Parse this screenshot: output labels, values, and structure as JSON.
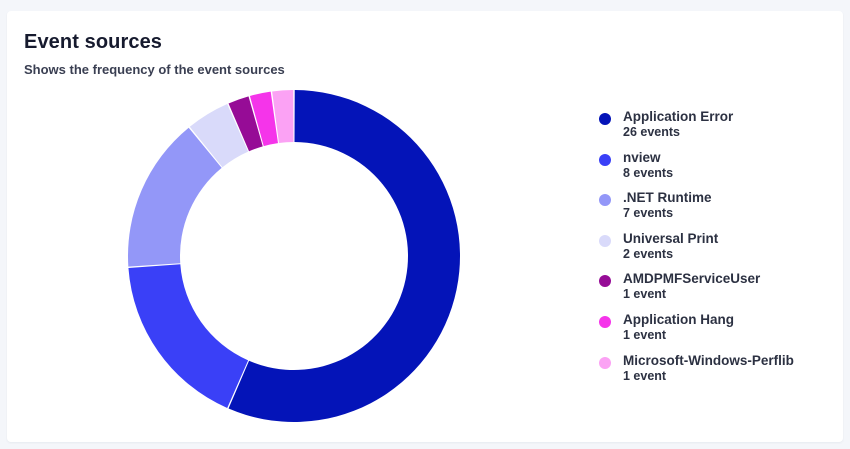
{
  "header": {
    "title": "Event sources",
    "subtitle": "Shows the frequency of the event sources"
  },
  "chart_data": {
    "type": "pie",
    "variant": "donut",
    "title": "Event sources",
    "subtitle": "Shows the frequency of the event sources",
    "legend_position": "right",
    "slices": [
      {
        "name": "Application Error",
        "value": 26,
        "count_label": "26 events",
        "color": "#0414b8"
      },
      {
        "name": "nview",
        "value": 8,
        "count_label": "8 events",
        "color": "#3a40f7"
      },
      {
        "name": ".NET Runtime",
        "value": 7,
        "count_label": "7 events",
        "color": "#9397f8"
      },
      {
        "name": "Universal Print",
        "value": 2,
        "count_label": "2 events",
        "color": "#d9dafa"
      },
      {
        "name": "AMDPMFServiceUser",
        "value": 1,
        "count_label": "1 event",
        "color": "#960c96"
      },
      {
        "name": "Application Hang",
        "value": 1,
        "count_label": "1 event",
        "color": "#f534ea"
      },
      {
        "name": "Microsoft-Windows-Perflib",
        "value": 1,
        "count_label": "1 event",
        "color": "#fba2f4"
      }
    ]
  }
}
